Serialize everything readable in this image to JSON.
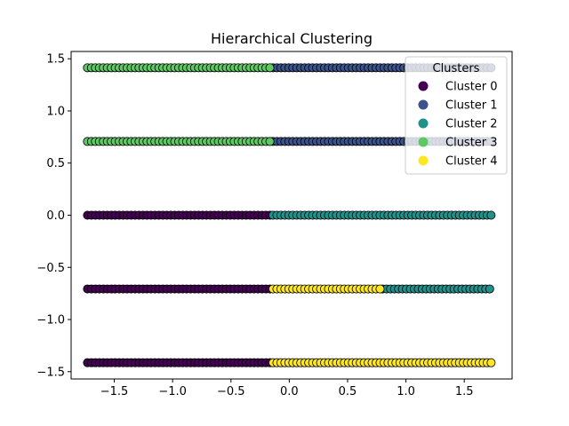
{
  "chart_data": {
    "type": "scatter",
    "title": "Hierarchical Clustering",
    "xlabel": "",
    "ylabel": "",
    "xlim": [
      -1.87,
      1.91
    ],
    "ylim": [
      -1.57,
      1.57
    ],
    "x_ticks": [
      {
        "value": -1.5,
        "label": "−1.5"
      },
      {
        "value": -1.0,
        "label": "−1.0"
      },
      {
        "value": -0.5,
        "label": "−0.5"
      },
      {
        "value": 0.0,
        "label": "0.0"
      },
      {
        "value": 0.5,
        "label": "0.5"
      },
      {
        "value": 1.0,
        "label": "1.0"
      },
      {
        "value": 1.5,
        "label": "1.5"
      }
    ],
    "y_ticks": [
      {
        "value": -1.5,
        "label": "−1.5"
      },
      {
        "value": -1.0,
        "label": "−1.0"
      },
      {
        "value": -0.5,
        "label": "−0.5"
      },
      {
        "value": 0.0,
        "label": "0.0"
      },
      {
        "value": 0.5,
        "label": "0.5"
      },
      {
        "value": 1.0,
        "label": "1.0"
      },
      {
        "value": 1.5,
        "label": "1.5"
      }
    ],
    "grid": false,
    "legend": {
      "title": "Clusters",
      "placement": "top-right"
    },
    "series": [
      {
        "name": "Cluster 0",
        "color": "#440154",
        "bands": [
          {
            "y": 0.0,
            "x_range": [
              -1.73,
              -0.16
            ]
          },
          {
            "y": -0.707,
            "x_range": [
              -1.73,
              -0.16
            ]
          },
          {
            "y": -1.414,
            "x_range": [
              -1.73,
              -0.16
            ]
          }
        ]
      },
      {
        "name": "Cluster 1",
        "color": "#3b528b",
        "bands": [
          {
            "y": 1.414,
            "x_range": [
              -0.14,
              1.73
            ]
          },
          {
            "y": 0.707,
            "x_range": [
              -0.14,
              1.73
            ]
          }
        ]
      },
      {
        "name": "Cluster 2",
        "color": "#21918c",
        "bands": [
          {
            "y": 0.0,
            "x_range": [
              -0.14,
              1.73
            ]
          },
          {
            "y": -0.707,
            "x_range": [
              0.8,
              1.73
            ]
          }
        ]
      },
      {
        "name": "Cluster 3",
        "color": "#5ec962",
        "bands": [
          {
            "y": 1.414,
            "x_range": [
              -1.73,
              -0.16
            ]
          },
          {
            "y": 0.707,
            "x_range": [
              -1.73,
              -0.16
            ]
          }
        ]
      },
      {
        "name": "Cluster 4",
        "color": "#fde725",
        "bands": [
          {
            "y": -0.707,
            "x_range": [
              -0.14,
              0.78
            ]
          },
          {
            "y": -1.414,
            "x_range": [
              -0.14,
              1.73
            ]
          }
        ]
      }
    ]
  }
}
